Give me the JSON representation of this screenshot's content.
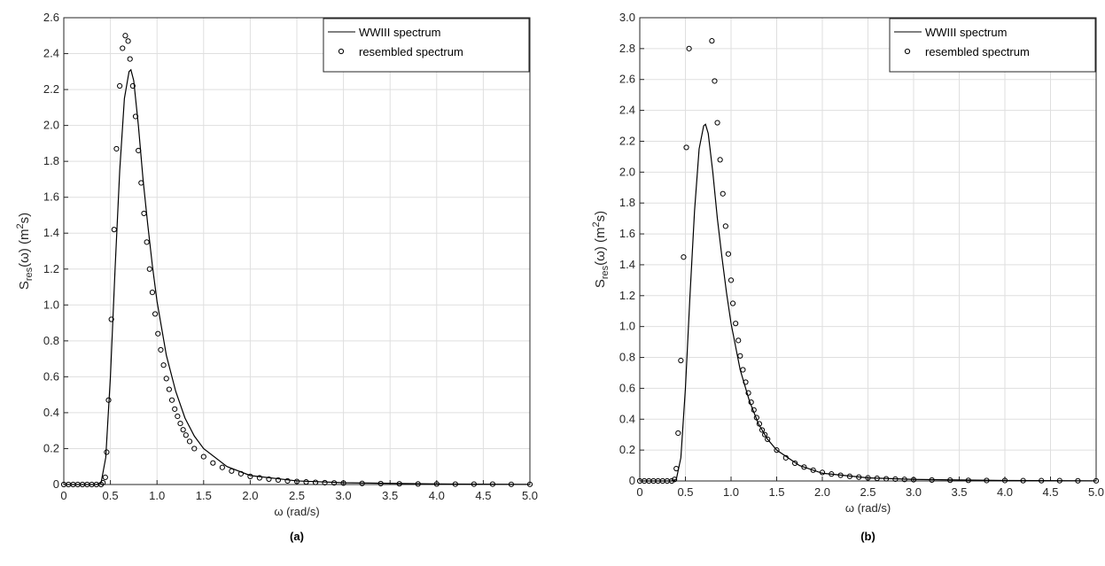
{
  "chart_data": [
    {
      "type": "line",
      "panel_label": "(a)",
      "xlabel": "ω (rad/s)",
      "ylabel_parts": [
        "S",
        "res",
        "(ω) (m",
        "2",
        "s)"
      ],
      "xlim": [
        0,
        5
      ],
      "ylim": [
        0,
        2.6
      ],
      "xticks": [
        0,
        0.5,
        {
          "value": 1,
          "label": "1.0"
        },
        1.5,
        {
          "value": 2,
          "label": "2.0"
        },
        2.5,
        {
          "value": 3,
          "label": "3.0"
        },
        3.5,
        {
          "value": 4,
          "label": "4.0"
        },
        4.5,
        {
          "value": 5,
          "label": "5.0"
        }
      ],
      "yticks": [
        0,
        0.2,
        0.4,
        0.6,
        0.8,
        {
          "value": 1,
          "label": "1.0"
        },
        1.2,
        1.4,
        1.6,
        1.8,
        {
          "value": 2,
          "label": "2.0"
        },
        2.2,
        2.4,
        2.6
      ],
      "grid": true,
      "legend": "upper right",
      "series": [
        {
          "name": "WWIII spectrum",
          "mode": "line",
          "color": "#000000",
          "x": [
            0,
            0.35,
            0.4,
            0.45,
            0.5,
            0.55,
            0.6,
            0.65,
            0.7,
            0.72,
            0.75,
            0.8,
            0.85,
            0.9,
            0.95,
            1.0,
            1.1,
            1.2,
            1.3,
            1.4,
            1.5,
            1.75,
            2.0,
            2.5,
            3.0,
            4.0,
            5.0
          ],
          "values": [
            0,
            0,
            0.01,
            0.15,
            0.6,
            1.2,
            1.75,
            2.15,
            2.3,
            2.31,
            2.25,
            2.0,
            1.7,
            1.45,
            1.22,
            1.02,
            0.72,
            0.52,
            0.37,
            0.27,
            0.2,
            0.1,
            0.05,
            0.02,
            0.01,
            0.003,
            0.001
          ]
        },
        {
          "name": "resembled spectrum",
          "mode": "markers",
          "color": "#000000",
          "x": [
            0,
            0.05,
            0.1,
            0.15,
            0.2,
            0.25,
            0.3,
            0.35,
            0.4,
            0.42,
            0.445,
            0.46,
            0.48,
            0.51,
            0.54,
            0.565,
            0.6,
            0.63,
            0.66,
            0.69,
            0.71,
            0.74,
            0.77,
            0.8,
            0.83,
            0.86,
            0.89,
            0.92,
            0.95,
            0.98,
            1.01,
            1.04,
            1.07,
            1.1,
            1.13,
            1.16,
            1.19,
            1.22,
            1.25,
            1.28,
            1.31,
            1.35,
            1.4,
            1.5,
            1.6,
            1.7,
            1.8,
            1.9,
            2.0,
            2.1,
            2.2,
            2.3,
            2.4,
            2.5,
            2.6,
            2.7,
            2.8,
            2.9,
            3.0,
            3.2,
            3.4,
            3.6,
            3.8,
            4.0,
            4.2,
            4.4,
            4.6,
            4.8,
            5.0
          ],
          "values": [
            0,
            0,
            0,
            0,
            0,
            0,
            0,
            0,
            0,
            0.01,
            0.04,
            0.18,
            0.47,
            0.92,
            1.42,
            1.87,
            2.22,
            2.43,
            2.5,
            2.47,
            2.37,
            2.22,
            2.05,
            1.86,
            1.68,
            1.51,
            1.35,
            1.2,
            1.07,
            0.95,
            0.84,
            0.75,
            0.665,
            0.59,
            0.53,
            0.47,
            0.42,
            0.38,
            0.34,
            0.305,
            0.275,
            0.24,
            0.2,
            0.155,
            0.12,
            0.095,
            0.075,
            0.06,
            0.045,
            0.037,
            0.03,
            0.025,
            0.02,
            0.017,
            0.014,
            0.012,
            0.01,
            0.009,
            0.008,
            0.006,
            0.005,
            0.004,
            0.003,
            0.003,
            0.002,
            0.002,
            0.002,
            0.001,
            0.001
          ]
        }
      ]
    },
    {
      "type": "line",
      "panel_label": "(b)",
      "xlabel": "ω (rad/s)",
      "ylabel_parts": [
        "S",
        "res",
        "(ω) (m",
        "2",
        "s)"
      ],
      "xlim": [
        0,
        5
      ],
      "ylim": [
        0,
        3
      ],
      "xticks": [
        0,
        0.5,
        {
          "value": 1,
          "label": "1.0"
        },
        1.5,
        {
          "value": 2,
          "label": "2.0"
        },
        2.5,
        {
          "value": 3,
          "label": "3.0"
        },
        3.5,
        {
          "value": 4,
          "label": "4.0"
        },
        4.5,
        {
          "value": 5,
          "label": "5.0"
        }
      ],
      "yticks": [
        0,
        0.2,
        0.4,
        0.6,
        0.8,
        {
          "value": 1,
          "label": "1.0"
        },
        1.2,
        1.4,
        1.6,
        1.8,
        {
          "value": 2,
          "label": "2.0"
        },
        2.2,
        2.4,
        2.6,
        2.8,
        {
          "value": 3,
          "label": "3.0"
        }
      ],
      "grid": true,
      "legend": "upper right",
      "series": [
        {
          "name": "WWIII spectrum",
          "mode": "line",
          "color": "#000000",
          "x": [
            0,
            0.35,
            0.4,
            0.45,
            0.5,
            0.55,
            0.6,
            0.65,
            0.7,
            0.72,
            0.75,
            0.8,
            0.85,
            0.9,
            0.95,
            1.0,
            1.1,
            1.2,
            1.3,
            1.4,
            1.5,
            1.75,
            2.0,
            2.5,
            3.0,
            4.0,
            5.0
          ],
          "values": [
            0,
            0,
            0.01,
            0.15,
            0.6,
            1.2,
            1.75,
            2.15,
            2.3,
            2.31,
            2.25,
            2.0,
            1.7,
            1.45,
            1.22,
            1.02,
            0.72,
            0.52,
            0.37,
            0.27,
            0.2,
            0.1,
            0.05,
            0.02,
            0.01,
            0.003,
            0.001
          ]
        },
        {
          "name": "resembled spectrum",
          "mode": "markers",
          "color": "#000000",
          "x": [
            0,
            0.05,
            0.1,
            0.15,
            0.2,
            0.25,
            0.3,
            0.35,
            0.38,
            0.4,
            0.42,
            0.45,
            0.48,
            0.51,
            0.54,
            0.79,
            0.82,
            0.85,
            0.88,
            0.91,
            0.94,
            0.97,
            1.0,
            1.02,
            1.05,
            1.08,
            1.1,
            1.13,
            1.16,
            1.19,
            1.22,
            1.25,
            1.28,
            1.31,
            1.34,
            1.37,
            1.4,
            1.5,
            1.6,
            1.7,
            1.8,
            1.9,
            2.0,
            2.1,
            2.2,
            2.3,
            2.4,
            2.5,
            2.6,
            2.7,
            2.8,
            2.9,
            3.0,
            3.2,
            3.4,
            3.6,
            3.8,
            4.0,
            4.2,
            4.4,
            4.6,
            4.8,
            5.0
          ],
          "values": [
            0,
            0,
            0,
            0,
            0,
            0,
            0,
            0,
            0.01,
            0.08,
            0.31,
            0.78,
            1.45,
            2.16,
            2.8,
            2.85,
            2.59,
            2.32,
            2.08,
            1.86,
            1.65,
            1.47,
            1.3,
            1.15,
            1.02,
            0.91,
            0.81,
            0.72,
            0.64,
            0.57,
            0.51,
            0.46,
            0.41,
            0.37,
            0.33,
            0.3,
            0.27,
            0.2,
            0.15,
            0.115,
            0.09,
            0.07,
            0.055,
            0.045,
            0.037,
            0.03,
            0.025,
            0.02,
            0.017,
            0.014,
            0.012,
            0.01,
            0.008,
            0.006,
            0.005,
            0.004,
            0.003,
            0.003,
            0.002,
            0.002,
            0.002,
            0.001,
            0.001
          ]
        }
      ]
    }
  ]
}
